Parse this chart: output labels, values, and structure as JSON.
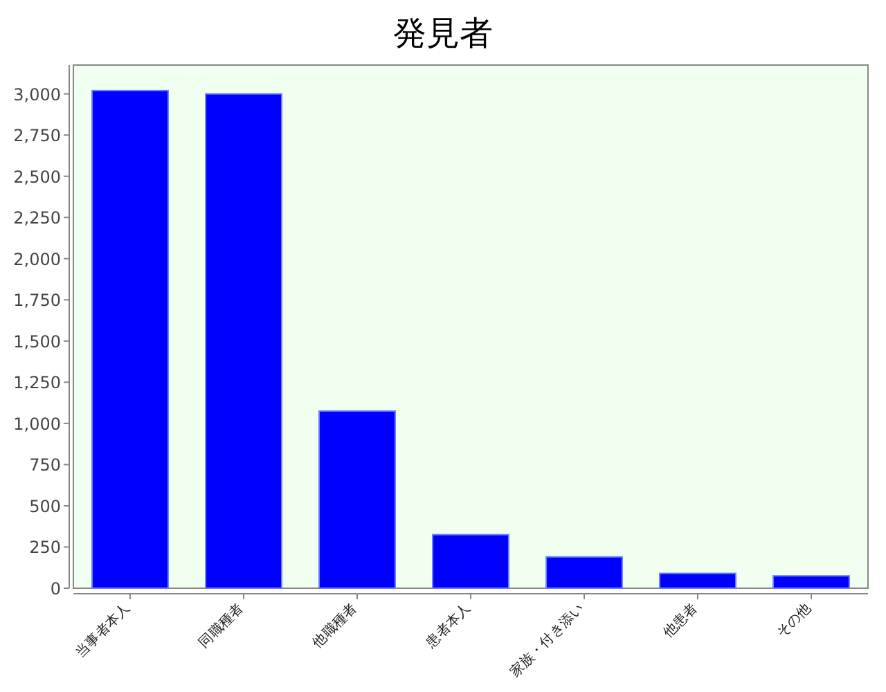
{
  "chart_data": {
    "type": "bar",
    "title": "発見者",
    "categories": [
      "当事者本人",
      "同職種者",
      "他職種者",
      "患者本人",
      "家族・付き添い",
      "他患者",
      "その他"
    ],
    "values": [
      3020,
      3000,
      1075,
      325,
      190,
      90,
      75
    ],
    "color": "#0000ff",
    "ylim": [
      0,
      3175
    ],
    "yticks": [
      {
        "value": 0,
        "label": "0"
      },
      {
        "value": 250,
        "label": "250"
      },
      {
        "value": 500,
        "label": "500"
      },
      {
        "value": 750,
        "label": "750"
      },
      {
        "value": 1000,
        "label": "1,000"
      },
      {
        "value": 1250,
        "label": "1,250"
      },
      {
        "value": 1500,
        "label": "1,500"
      },
      {
        "value": 1750,
        "label": "1,750"
      },
      {
        "value": 2000,
        "label": "2,000"
      },
      {
        "value": 2250,
        "label": "2,250"
      },
      {
        "value": 2500,
        "label": "2,500"
      },
      {
        "value": 2750,
        "label": "2,750"
      },
      {
        "value": 3000,
        "label": "3,000"
      }
    ],
    "grid": false
  }
}
